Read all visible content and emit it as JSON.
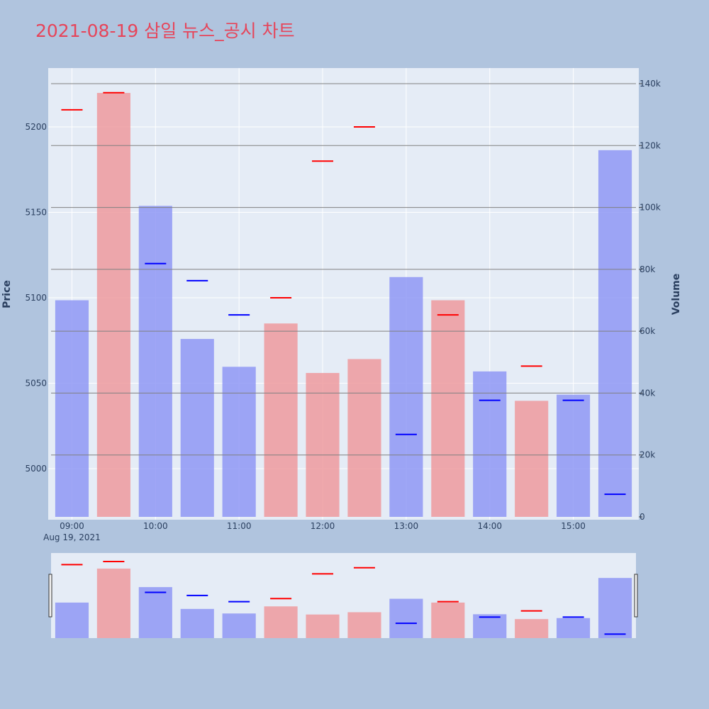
{
  "title": "2021-08-19 삼일 뉴스_공시 차트",
  "colors": {
    "background": "#b0c4de",
    "plot_bg": "#e5ecf6",
    "up_bar": "#ef9a9e",
    "down_bar": "#8f98f5",
    "up_mark": "#ff0000",
    "down_mark": "#0000ff",
    "title": "#e6455a"
  },
  "chart_data": {
    "type": "bar",
    "x": [
      "09:00",
      "09:30",
      "10:00",
      "10:30",
      "11:00",
      "11:30",
      "12:00",
      "12:30",
      "13:00",
      "13:30",
      "14:00",
      "14:30",
      "15:00",
      "15:30"
    ],
    "x_ticks": [
      "09:00",
      "10:00",
      "11:00",
      "12:00",
      "13:00",
      "14:00",
      "15:00"
    ],
    "x_date_label": "Aug 19, 2021",
    "series": [
      {
        "name": "Volume",
        "axis": "right",
        "values": [
          70000,
          137000,
          100500,
          57500,
          48500,
          62500,
          46500,
          51000,
          77500,
          70000,
          47000,
          37500,
          39500,
          118500
        ],
        "direction": [
          "down",
          "up",
          "down",
          "down",
          "down",
          "up",
          "up",
          "up",
          "down",
          "up",
          "down",
          "up",
          "down",
          "down"
        ]
      },
      {
        "name": "Price",
        "axis": "left",
        "values": [
          5210,
          5220,
          5120,
          5110,
          5090,
          5100,
          5180,
          5200,
          5020,
          5090,
          5040,
          5060,
          5040,
          4985
        ],
        "direction": [
          "up",
          "up",
          "down",
          "down",
          "down",
          "up",
          "up",
          "up",
          "down",
          "up",
          "down",
          "up",
          "down",
          "down"
        ]
      }
    ],
    "ylabel": "Price",
    "y_ticks": [
      5000,
      5050,
      5100,
      5150,
      5200
    ],
    "ylim": [
      4972,
      5235
    ],
    "y2label": "Volume",
    "y2_ticks": [
      0,
      20000,
      40000,
      60000,
      80000,
      100000,
      120000,
      140000
    ],
    "y2_tick_labels": [
      "0",
      "20k",
      "40k",
      "60k",
      "80k",
      "100k",
      "120k",
      "140k"
    ],
    "y2lim": [
      0,
      140000
    ],
    "grid": true,
    "legend": "none",
    "rangeslider": true
  }
}
